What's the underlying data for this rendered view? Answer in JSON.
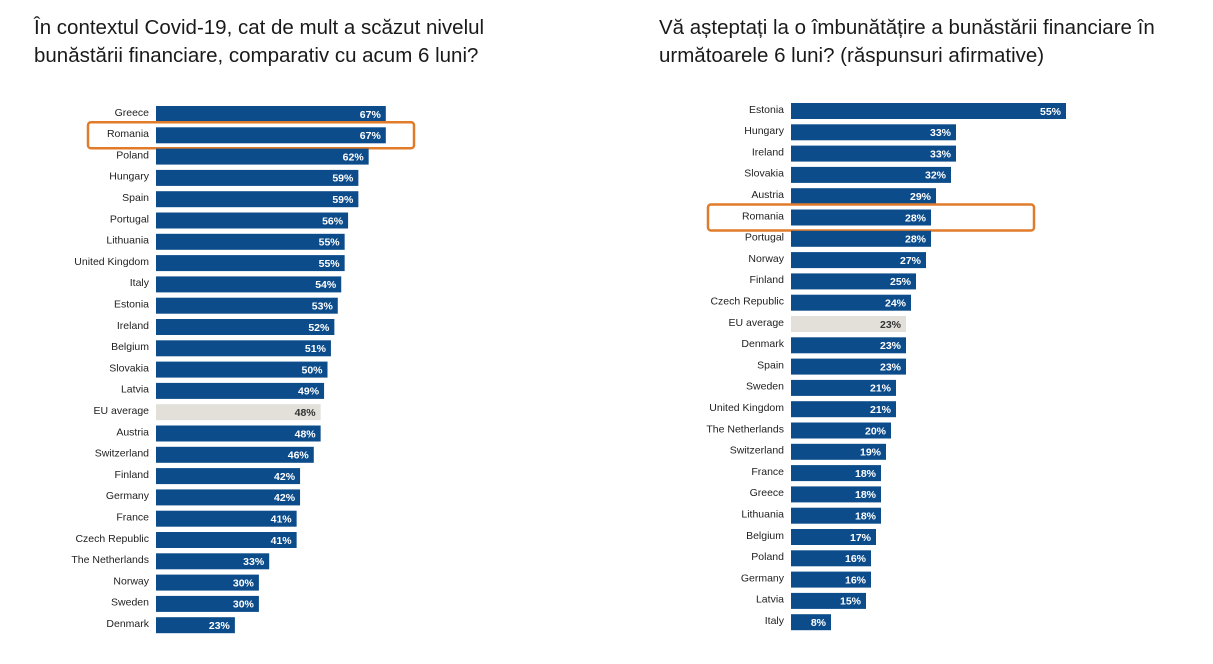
{
  "colors": {
    "bar": "#0d4c8b",
    "eu_bar": "#e3e0da",
    "highlight": "#e07b2a",
    "label_on_bar": "#ffffff",
    "label_on_eu": "#333333"
  },
  "chart_data": [
    {
      "type": "bar",
      "orientation": "horizontal",
      "title": "În contextul Covid-19, cat de mult a scăzut nivelul bunăstării financiare, comparativ cu acum 6 luni?",
      "categories": [
        "Greece",
        "Romania",
        "Poland",
        "Hungary",
        "Spain",
        "Portugal",
        "Lithuania",
        "United Kingdom",
        "Italy",
        "Estonia",
        "Ireland",
        "Belgium",
        "Slovakia",
        "Latvia",
        "EU average",
        "Austria",
        "Switzerland",
        "Finland",
        "Germany",
        "France",
        "Czech Republic",
        "The Netherlands",
        "Norway",
        "Sweden",
        "Denmark"
      ],
      "values": [
        67,
        67,
        62,
        59,
        59,
        56,
        55,
        55,
        54,
        53,
        52,
        51,
        50,
        49,
        48,
        48,
        46,
        42,
        42,
        41,
        41,
        33,
        30,
        30,
        23
      ],
      "value_labels": [
        "67%",
        "67%",
        "62%",
        "59%",
        "59%",
        "56%",
        "55%",
        "55%",
        "54%",
        "53%",
        "52%",
        "51%",
        "50%",
        "49%",
        "48%",
        "48%",
        "46%",
        "42%",
        "42%",
        "41%",
        "41%",
        "33%",
        "30%",
        "30%",
        "23%"
      ],
      "highlight": "Romania",
      "average_category": "EU average",
      "xlim": [
        0,
        100
      ]
    },
    {
      "type": "bar",
      "orientation": "horizontal",
      "title": "Vă așteptați la o îmbunătățire a bunăstării financiare în următoarele 6 luni? (răspunsuri afirmative)",
      "categories": [
        "Estonia",
        "Hungary",
        "Ireland",
        "Slovakia",
        "Austria",
        "Romania",
        "Portugal",
        "Norway",
        "Finland",
        "Czech Republic",
        "EU average",
        "Denmark",
        "Spain",
        "Sweden",
        "United Kingdom",
        "The Netherlands",
        "Switzerland",
        "France",
        "Greece",
        "Lithuania",
        "Belgium",
        "Poland",
        "Germany",
        "Latvia",
        "Italy"
      ],
      "values": [
        55,
        33,
        33,
        32,
        29,
        28,
        28,
        27,
        25,
        24,
        23,
        23,
        23,
        21,
        21,
        20,
        19,
        18,
        18,
        18,
        17,
        16,
        16,
        15,
        8
      ],
      "value_labels": [
        "55%",
        "33%",
        "33%",
        "32%",
        "29%",
        "28%",
        "28%",
        "27%",
        "25%",
        "24%",
        "23%",
        "23%",
        "23%",
        "21%",
        "21%",
        "20%",
        "19%",
        "18%",
        "18%",
        "18%",
        "17%",
        "16%",
        "16%",
        "15%",
        "8%"
      ],
      "highlight": "Romania",
      "average_category": "EU average",
      "xlim": [
        0,
        100
      ]
    }
  ]
}
